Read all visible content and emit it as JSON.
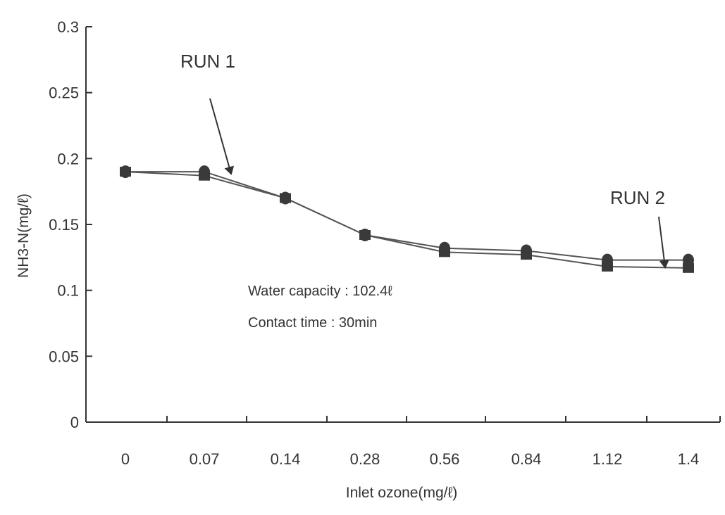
{
  "chart_data": {
    "type": "line",
    "title": "",
    "xlabel": "Inlet ozone(mg/ℓ)",
    "ylabel": "NH3-N(mg/ℓ)",
    "categories": [
      "0",
      "0.07",
      "0.14",
      "0.28",
      "0.56",
      "0.84",
      "1.12",
      "1.4"
    ],
    "ylim": [
      0,
      0.3
    ],
    "yticks": [
      "0",
      "0.05",
      "0.1",
      "0.15",
      "0.2",
      "0.25",
      "0.3"
    ],
    "grid": false,
    "series": [
      {
        "name": "RUN 1",
        "marker": "circle",
        "values": [
          0.19,
          0.19,
          0.17,
          0.142,
          0.132,
          0.13,
          0.123,
          0.123
        ]
      },
      {
        "name": "RUN 2",
        "marker": "square",
        "values": [
          0.19,
          0.187,
          0.17,
          0.142,
          0.129,
          0.127,
          0.118,
          0.117
        ]
      }
    ],
    "annotations": [
      {
        "text": "RUN 1",
        "target_series": "RUN 1",
        "target_index": 1
      },
      {
        "text": "RUN 2",
        "target_series": "RUN 2",
        "target_index": 7
      }
    ],
    "notes": [
      "Water capacity : 102.4ℓ",
      "Contact time : 30min"
    ],
    "line_color": "#555555",
    "marker_color": "#3a3a3a"
  }
}
